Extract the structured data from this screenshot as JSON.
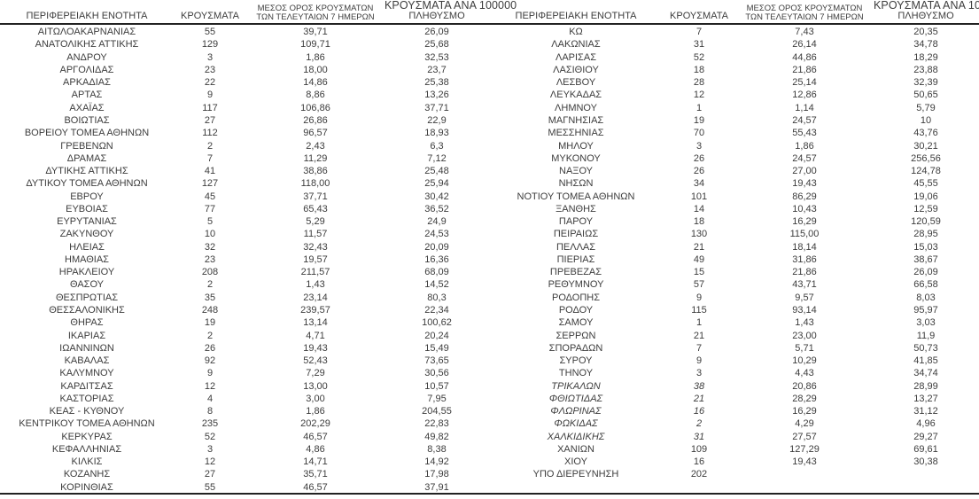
{
  "header": {
    "col_region": "ΠΕΡΙΦΕΡΕΙΑΚΗ ΕΝΟΤΗΤΑ",
    "col_cases": "ΚΡΟΥΣΜΑΤΑ",
    "col_avg7_line1": "ΜΕΣΟΣ ΟΡΟΣ ΚΡΟΥΣΜΑΤΩΝ",
    "col_avg7_line2": "ΤΩΝ ΤΕΛΕΥΤΑΙΩΝ 7 ΗΜΕΡΩΝ",
    "col_per100k_line1": "ΚΡΟΥΣΜΑΤΑ ΑΝΑ 100000",
    "col_per100k_line2": "ΠΛΗΘΥΣΜΟ"
  },
  "colors": {
    "text": "#3d3d3d",
    "rule": "#222222",
    "background": "#ffffff"
  },
  "left_table": {
    "rows": [
      [
        "ΑΙΤΩΛΟΑΚΑΡΝΑΝΙΑΣ",
        "55",
        "39,71",
        "26,09"
      ],
      [
        "ΑΝΑΤΟΛΙΚΗΣ ΑΤΤΙΚΗΣ",
        "129",
        "109,71",
        "25,68"
      ],
      [
        "ΑΝΔΡΟΥ",
        "3",
        "1,86",
        "32,53"
      ],
      [
        "ΑΡΓΟΛΙΔΑΣ",
        "23",
        "18,00",
        "23,7"
      ],
      [
        "ΑΡΚΑΔΙΑΣ",
        "22",
        "14,86",
        "25,38"
      ],
      [
        "ΑΡΤΑΣ",
        "9",
        "8,86",
        "13,26"
      ],
      [
        "ΑΧΑΪΑΣ",
        "117",
        "106,86",
        "37,71"
      ],
      [
        "ΒΟΙΩΤΙΑΣ",
        "27",
        "26,86",
        "22,9"
      ],
      [
        "ΒΟΡΕΙΟΥ ΤΟΜΕΑ ΑΘΗΝΩΝ",
        "112",
        "96,57",
        "18,93"
      ],
      [
        "ΓΡΕΒΕΝΩΝ",
        "2",
        "2,43",
        "6,3"
      ],
      [
        "ΔΡΑΜΑΣ",
        "7",
        "11,29",
        "7,12"
      ],
      [
        "ΔΥΤΙΚΗΣ ΑΤΤΙΚΗΣ",
        "41",
        "38,86",
        "25,48"
      ],
      [
        "ΔΥΤΙΚΟΥ ΤΟΜΕΑ ΑΘΗΝΩΝ",
        "127",
        "118,00",
        "25,94"
      ],
      [
        "ΕΒΡΟΥ",
        "45",
        "37,71",
        "30,42"
      ],
      [
        "ΕΥΒΟΙΑΣ",
        "77",
        "65,43",
        "36,52"
      ],
      [
        "ΕΥΡΥΤΑΝΙΑΣ",
        "5",
        "5,29",
        "24,9"
      ],
      [
        "ΖΑΚΥΝΘΟΥ",
        "10",
        "11,57",
        "24,53"
      ],
      [
        "ΗΛΕΙΑΣ",
        "32",
        "32,43",
        "20,09"
      ],
      [
        "ΗΜΑΘΙΑΣ",
        "23",
        "19,57",
        "16,36"
      ],
      [
        "ΗΡΑΚΛΕΙΟΥ",
        "208",
        "211,57",
        "68,09"
      ],
      [
        "ΘΑΣΟΥ",
        "2",
        "1,43",
        "14,52"
      ],
      [
        "ΘΕΣΠΡΩΤΙΑΣ",
        "35",
        "23,14",
        "80,3"
      ],
      [
        "ΘΕΣΣΑΛΟΝΙΚΗΣ",
        "248",
        "239,57",
        "22,34"
      ],
      [
        "ΘΗΡΑΣ",
        "19",
        "13,14",
        "100,62"
      ],
      [
        "ΙΚΑΡΙΑΣ",
        "2",
        "4,71",
        "20,24"
      ],
      [
        "ΙΩΑΝΝΙΝΩΝ",
        "26",
        "19,43",
        "15,49"
      ],
      [
        "ΚΑΒΑΛΑΣ",
        "92",
        "52,43",
        "73,65"
      ],
      [
        "ΚΑΛΥΜΝΟΥ",
        "9",
        "7,29",
        "30,56"
      ],
      [
        "ΚΑΡΔΙΤΣΑΣ",
        "12",
        "13,00",
        "10,57"
      ],
      [
        "ΚΑΣΤΟΡΙΑΣ",
        "4",
        "3,00",
        "7,95"
      ],
      [
        "ΚΕΑΣ - ΚΥΘΝΟΥ",
        "8",
        "1,86",
        "204,55"
      ],
      [
        "ΚΕΝΤΡΙΚΟΥ ΤΟΜΕΑ ΑΘΗΝΩΝ",
        "235",
        "202,29",
        "22,83"
      ],
      [
        "ΚΕΡΚΥΡΑΣ",
        "52",
        "46,57",
        "49,82"
      ],
      [
        "ΚΕΦΑΛΛΗΝΙΑΣ",
        "3",
        "4,86",
        "8,38"
      ],
      [
        "ΚΙΛΚΙΣ",
        "12",
        "14,71",
        "14,92"
      ],
      [
        "ΚΟΖΑΝΗΣ",
        "27",
        "35,71",
        "17,98"
      ],
      [
        "ΚΟΡΙΝΘΙΑΣ",
        "55",
        "46,57",
        "37,91"
      ]
    ],
    "italic_regions": []
  },
  "right_table": {
    "rows": [
      [
        "ΚΩ",
        "7",
        "7,43",
        "20,35"
      ],
      [
        "ΛΑΚΩΝΙΑΣ",
        "31",
        "26,14",
        "34,78"
      ],
      [
        "ΛΑΡΙΣΑΣ",
        "52",
        "44,86",
        "18,29"
      ],
      [
        "ΛΑΣΙΘΙΟΥ",
        "18",
        "21,86",
        "23,88"
      ],
      [
        "ΛΕΣΒΟΥ",
        "28",
        "25,14",
        "32,39"
      ],
      [
        "ΛΕΥΚΑΔΑΣ",
        "12",
        "12,86",
        "50,65"
      ],
      [
        "ΛΗΜΝΟΥ",
        "1",
        "1,14",
        "5,79"
      ],
      [
        "ΜΑΓΝΗΣΙΑΣ",
        "19",
        "24,57",
        "10"
      ],
      [
        "ΜΕΣΣΗΝΙΑΣ",
        "70",
        "55,43",
        "43,76"
      ],
      [
        "ΜΗΛΟΥ",
        "3",
        "1,86",
        "30,21"
      ],
      [
        "ΜΥΚΟΝΟΥ",
        "26",
        "24,57",
        "256,56"
      ],
      [
        "ΝΑΞΟΥ",
        "26",
        "27,00",
        "124,78"
      ],
      [
        "ΝΗΣΩΝ",
        "34",
        "19,43",
        "45,55"
      ],
      [
        "ΝΟΤΙΟΥ ΤΟΜΕΑ ΑΘΗΝΩΝ",
        "101",
        "86,29",
        "19,06"
      ],
      [
        "ΞΑΝΘΗΣ",
        "14",
        "10,43",
        "12,59"
      ],
      [
        "ΠΑΡΟΥ",
        "18",
        "16,29",
        "120,59"
      ],
      [
        "ΠΕΙΡΑΙΩΣ",
        "130",
        "115,00",
        "28,95"
      ],
      [
        "ΠΕΛΛΑΣ",
        "21",
        "18,14",
        "15,03"
      ],
      [
        "ΠΙΕΡΙΑΣ",
        "49",
        "31,86",
        "38,67"
      ],
      [
        "ΠΡΕΒΕΖΑΣ",
        "15",
        "21,86",
        "26,09"
      ],
      [
        "ΡΕΘΥΜΝΟΥ",
        "57",
        "43,71",
        "66,58"
      ],
      [
        "ΡΟΔΟΠΗΣ",
        "9",
        "9,57",
        "8,03"
      ],
      [
        "ΡΟΔΟΥ",
        "115",
        "93,14",
        "95,97"
      ],
      [
        "ΣΑΜΟΥ",
        "1",
        "1,43",
        "3,03"
      ],
      [
        "ΣΕΡΡΩΝ",
        "21",
        "23,00",
        "11,9"
      ],
      [
        "ΣΠΟΡΑΔΩΝ",
        "7",
        "5,71",
        "50,73"
      ],
      [
        "ΣΥΡΟΥ",
        "9",
        "10,29",
        "41,85"
      ],
      [
        "ΤΗΝΟΥ",
        "3",
        "4,43",
        "34,74"
      ],
      [
        "ΤΡΙΚΑΛΩΝ",
        "38",
        "20,86",
        "28,99"
      ],
      [
        "ΦΘΙΩΤΙΔΑΣ",
        "21",
        "28,29",
        "13,27"
      ],
      [
        "ΦΛΩΡΙΝΑΣ",
        "16",
        "16,29",
        "31,12"
      ],
      [
        "ΦΩΚΙΔΑΣ",
        "2",
        "4,29",
        "4,96"
      ],
      [
        "ΧΑΛΚΙΔΙΚΗΣ",
        "31",
        "27,57",
        "29,27"
      ],
      [
        "ΧΑΝΙΩΝ",
        "109",
        "127,29",
        "69,61"
      ],
      [
        "ΧΙΟΥ",
        "16",
        "19,43",
        "30,38"
      ],
      [
        "ΥΠΟ ΔΙΕΡΕΥΝΗΣΗ",
        "202",
        "",
        ""
      ]
    ],
    "italic_regions": [
      "ΤΡΙΚΑΛΩΝ",
      "ΦΘΙΩΤΙΔΑΣ",
      "ΦΛΩΡΙΝΑΣ",
      "ΦΩΚΙΔΑΣ",
      "ΧΑΛΚΙΔΙΚΗΣ"
    ]
  }
}
